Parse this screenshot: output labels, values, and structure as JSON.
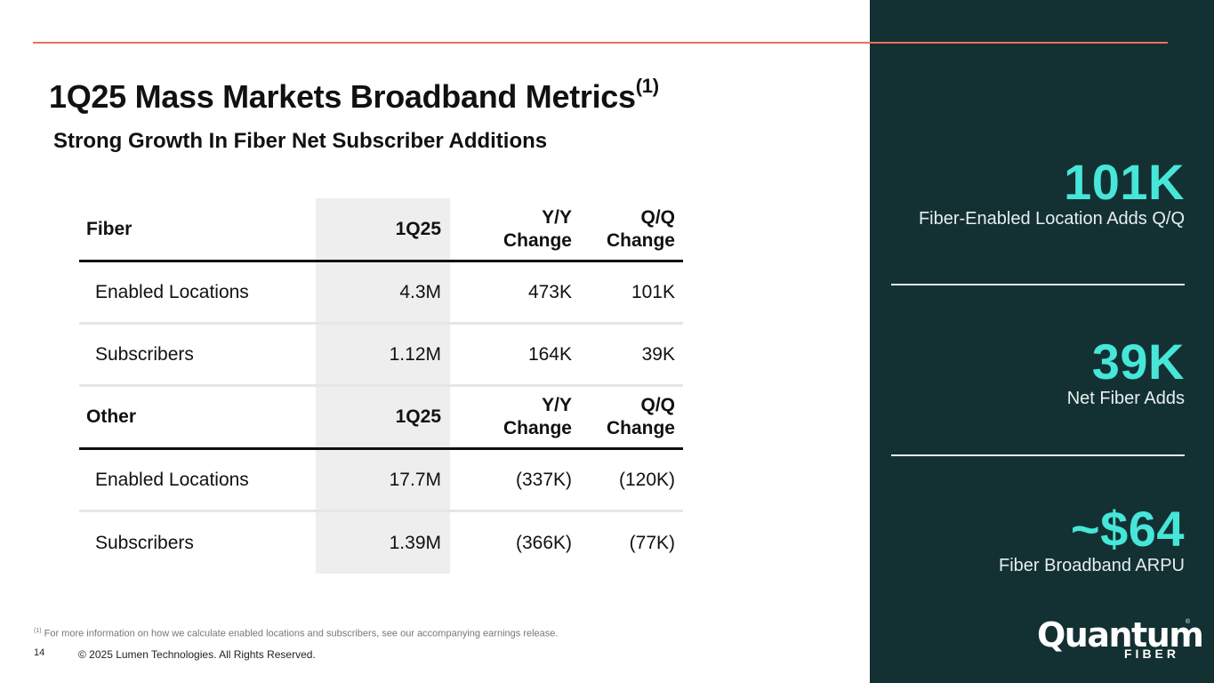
{
  "title": {
    "text": "1Q25 Mass Markets Broadband Metrics",
    "sup": "(1)"
  },
  "subtitle": "Strong Growth In Fiber Net Subscriber Additions",
  "table": {
    "fiber": {
      "header": {
        "label": "Fiber",
        "col1": "1Q25",
        "col2": "Y/Y\nChange",
        "col3": "Q/Q\nChange"
      },
      "rows": [
        {
          "label": "Enabled Locations",
          "q": "4.3M",
          "yy": "473K",
          "qq": "101K"
        },
        {
          "label": "Subscribers",
          "q": "1.12M",
          "yy": "164K",
          "qq": "39K"
        }
      ]
    },
    "other": {
      "header": {
        "label": "Other",
        "col1": "1Q25",
        "col2": "Y/Y\nChange",
        "col3": "Q/Q\nChange"
      },
      "rows": [
        {
          "label": "Enabled Locations",
          "q": "17.7M",
          "yy": "(337K)",
          "qq": "(120K)"
        },
        {
          "label": "Subscribers",
          "q": "1.39M",
          "yy": "(366K)",
          "qq": "(77K)"
        }
      ]
    }
  },
  "sidebar": {
    "stats": [
      {
        "value": "101K",
        "label": "Fiber-Enabled Location Adds Q/Q"
      },
      {
        "value": "39K",
        "label": "Net Fiber Adds"
      },
      {
        "value": "~$64",
        "label": "Fiber Broadband ARPU"
      }
    ],
    "logo": {
      "word": "Quantum",
      "sub": "FIBER",
      "mark": "®"
    }
  },
  "footnote": {
    "sup": "(1)",
    "text": " For more information on how we calculate enabled locations and subscribers, see our accompanying earnings release."
  },
  "page_number": "14",
  "copyright": "© 2025 Lumen Technologies. All Rights Reserved.",
  "colors": {
    "accent_rule": "#e8715a",
    "sidebar_bg": "#133033",
    "stat_value": "#46e6d8",
    "column_shade": "#eeeeee"
  }
}
